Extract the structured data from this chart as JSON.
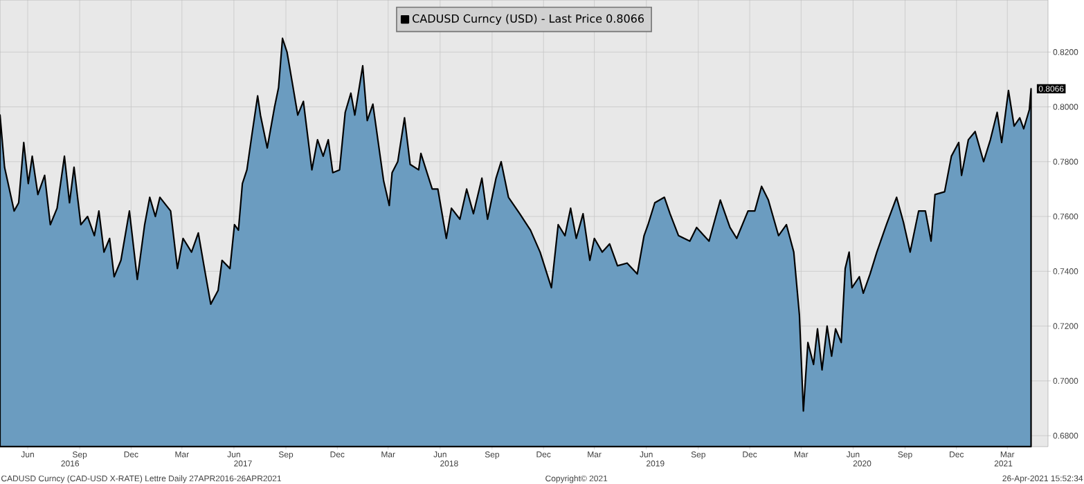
{
  "chart_data": {
    "type": "area",
    "x": [
      "2016-04-27",
      "2016-05-05",
      "2016-05-22",
      "2016-05-30",
      "2016-06-08",
      "2016-06-16",
      "2016-06-23",
      "2016-07-03",
      "2016-07-15",
      "2016-07-25",
      "2016-08-06",
      "2016-08-19",
      "2016-08-28",
      "2016-09-05",
      "2016-09-17",
      "2016-09-29",
      "2016-10-11",
      "2016-10-19",
      "2016-10-28",
      "2016-11-07",
      "2016-11-15",
      "2016-11-27",
      "2016-12-12",
      "2016-12-26",
      "2017-01-08",
      "2017-01-17",
      "2017-01-27",
      "2017-02-04",
      "2017-02-23",
      "2017-03-07",
      "2017-03-17",
      "2017-04-01",
      "2017-04-13",
      "2017-04-23",
      "2017-05-05",
      "2017-05-18",
      "2017-05-25",
      "2017-06-08",
      "2017-06-16",
      "2017-06-23",
      "2017-06-30",
      "2017-07-08",
      "2017-07-17",
      "2017-07-27",
      "2017-08-01",
      "2017-08-13",
      "2017-08-26",
      "2017-09-02",
      "2017-09-09",
      "2017-09-17",
      "2017-09-27",
      "2017-10-06",
      "2017-10-16",
      "2017-10-31",
      "2017-11-10",
      "2017-11-20",
      "2017-11-29",
      "2017-12-07",
      "2017-12-19",
      "2017-12-29",
      "2018-01-08",
      "2018-01-15",
      "2018-01-29",
      "2018-02-06",
      "2018-02-16",
      "2018-03-07",
      "2018-03-17",
      "2018-03-22",
      "2018-04-01",
      "2018-04-13",
      "2018-04-23",
      "2018-05-08",
      "2018-05-12",
      "2018-06-01",
      "2018-06-11",
      "2018-06-26",
      "2018-07-05",
      "2018-07-20",
      "2018-08-01",
      "2018-08-13",
      "2018-08-28",
      "2018-09-07",
      "2018-09-22",
      "2018-10-01",
      "2018-10-14",
      "2018-11-03",
      "2018-11-22",
      "2018-12-09",
      "2018-12-29",
      "2019-01-10",
      "2019-01-22",
      "2019-02-01",
      "2019-02-11",
      "2019-02-23",
      "2019-03-07",
      "2019-03-15",
      "2019-03-29",
      "2019-04-11",
      "2019-04-25",
      "2019-05-12",
      "2019-05-30",
      "2019-06-11",
      "2019-06-18",
      "2019-06-30",
      "2019-07-17",
      "2019-07-27",
      "2019-08-11",
      "2019-08-31",
      "2019-09-12",
      "2019-10-04",
      "2019-10-24",
      "2019-11-10",
      "2019-11-22",
      "2019-12-12",
      "2019-12-24",
      "2020-01-05",
      "2020-01-17",
      "2020-02-04",
      "2020-02-18",
      "2020-03-02",
      "2020-03-12",
      "2020-03-19",
      "2020-03-27",
      "2020-04-06",
      "2020-04-13",
      "2020-04-21",
      "2020-04-30",
      "2020-05-08",
      "2020-05-15",
      "2020-05-25",
      "2020-06-01",
      "2020-06-08",
      "2020-06-13",
      "2020-06-26",
      "2020-07-03",
      "2020-07-15",
      "2020-07-27",
      "2020-08-13",
      "2020-08-31",
      "2020-09-12",
      "2020-09-24",
      "2020-10-09",
      "2020-10-21",
      "2020-10-31",
      "2020-11-07",
      "2020-11-24",
      "2020-12-06",
      "2020-12-19",
      "2020-12-24",
      "2021-01-05",
      "2021-01-17",
      "2021-02-01",
      "2021-02-13",
      "2021-02-25",
      "2021-03-05",
      "2021-03-17",
      "2021-03-27",
      "2021-04-06",
      "2021-04-13",
      "2021-04-23",
      "2021-04-26"
    ],
    "series": [
      {
        "name": "CADUSD Curncy (USD) - Last Price 0.8066",
        "color": "#6b9cc0",
        "values": [
          0.797,
          0.778,
          0.762,
          0.765,
          0.787,
          0.772,
          0.782,
          0.768,
          0.775,
          0.757,
          0.763,
          0.782,
          0.765,
          0.778,
          0.757,
          0.76,
          0.753,
          0.762,
          0.747,
          0.752,
          0.738,
          0.744,
          0.762,
          0.737,
          0.757,
          0.767,
          0.76,
          0.767,
          0.762,
          0.741,
          0.752,
          0.747,
          0.754,
          0.742,
          0.728,
          0.733,
          0.744,
          0.741,
          0.757,
          0.755,
          0.772,
          0.777,
          0.79,
          0.804,
          0.797,
          0.785,
          0.8,
          0.807,
          0.825,
          0.82,
          0.808,
          0.797,
          0.802,
          0.777,
          0.788,
          0.782,
          0.788,
          0.776,
          0.777,
          0.798,
          0.805,
          0.797,
          0.815,
          0.795,
          0.801,
          0.773,
          0.764,
          0.776,
          0.78,
          0.796,
          0.779,
          0.777,
          0.783,
          0.77,
          0.77,
          0.752,
          0.763,
          0.759,
          0.77,
          0.761,
          0.774,
          0.759,
          0.774,
          0.78,
          0.767,
          0.761,
          0.755,
          0.747,
          0.734,
          0.757,
          0.753,
          0.763,
          0.752,
          0.761,
          0.744,
          0.752,
          0.747,
          0.75,
          0.742,
          0.743,
          0.739,
          0.753,
          0.757,
          0.765,
          0.767,
          0.761,
          0.753,
          0.751,
          0.756,
          0.751,
          0.766,
          0.756,
          0.752,
          0.762,
          0.762,
          0.771,
          0.766,
          0.753,
          0.757,
          0.747,
          0.724,
          0.689,
          0.714,
          0.706,
          0.719,
          0.704,
          0.72,
          0.709,
          0.719,
          0.714,
          0.741,
          0.747,
          0.734,
          0.738,
          0.732,
          0.739,
          0.747,
          0.757,
          0.767,
          0.758,
          0.747,
          0.762,
          0.762,
          0.751,
          0.768,
          0.769,
          0.782,
          0.787,
          0.775,
          0.788,
          0.791,
          0.78,
          0.788,
          0.798,
          0.787,
          0.806,
          0.793,
          0.796,
          0.792,
          0.799,
          0.8066
        ]
      }
    ],
    "xlim": [
      "2016-04-27",
      "2021-05-26"
    ],
    "xticks": [
      {
        "value": "2016-06-15",
        "label": "Jun"
      },
      {
        "value": "2016-09-15",
        "label": "Sep"
      },
      {
        "value": "2016-12-15",
        "label": "Dec"
      },
      {
        "value": "2017-03-15",
        "label": "Mar"
      },
      {
        "value": "2017-06-15",
        "label": "Jun"
      },
      {
        "value": "2017-09-15",
        "label": "Sep"
      },
      {
        "value": "2017-12-15",
        "label": "Dec"
      },
      {
        "value": "2018-03-15",
        "label": "Mar"
      },
      {
        "value": "2018-06-15",
        "label": "Jun"
      },
      {
        "value": "2018-09-15",
        "label": "Sep"
      },
      {
        "value": "2018-12-15",
        "label": "Dec"
      },
      {
        "value": "2019-03-15",
        "label": "Mar"
      },
      {
        "value": "2019-06-15",
        "label": "Jun"
      },
      {
        "value": "2019-09-15",
        "label": "Sep"
      },
      {
        "value": "2019-12-15",
        "label": "Dec"
      },
      {
        "value": "2020-03-15",
        "label": "Mar"
      },
      {
        "value": "2020-06-15",
        "label": "Jun"
      },
      {
        "value": "2020-09-15",
        "label": "Sep"
      },
      {
        "value": "2020-12-15",
        "label": "Dec"
      },
      {
        "value": "2021-03-15",
        "label": "Mar"
      }
    ],
    "x2lim": [
      "2016-04-27",
      "2021-05-26"
    ],
    "x2ticks": [
      {
        "value": "2016-08-29",
        "label": "2016"
      },
      {
        "value": "2017-07-01",
        "label": "2017"
      },
      {
        "value": "2018-07-01",
        "label": "2018"
      },
      {
        "value": "2019-07-01",
        "label": "2019"
      },
      {
        "value": "2020-07-01",
        "label": "2020"
      },
      {
        "value": "2021-03-08",
        "label": "2021"
      }
    ],
    "ylim": [
      0.676,
      0.839
    ],
    "yticks": [
      {
        "value": 0.68,
        "label": "0.6800"
      },
      {
        "value": 0.7,
        "label": "0.7000"
      },
      {
        "value": 0.72,
        "label": "0.7200"
      },
      {
        "value": 0.74,
        "label": "0.7400"
      },
      {
        "value": 0.76,
        "label": "0.7600"
      },
      {
        "value": 0.78,
        "label": "0.7800"
      },
      {
        "value": 0.8,
        "label": "0.8000"
      },
      {
        "value": 0.82,
        "label": "0.8200"
      }
    ],
    "grid": true,
    "legend": "top",
    "annotations": [
      "CADUSD Curncy (CAD-USD X-RATE) Lettre  Daily 27APR2016-26APR2021",
      "Copyright© 2021",
      "26-Apr-2021 15:52:34",
      {
        "text": "0.8066",
        "x": "2021-04-26",
        "y": 0.8066
      }
    ]
  }
}
